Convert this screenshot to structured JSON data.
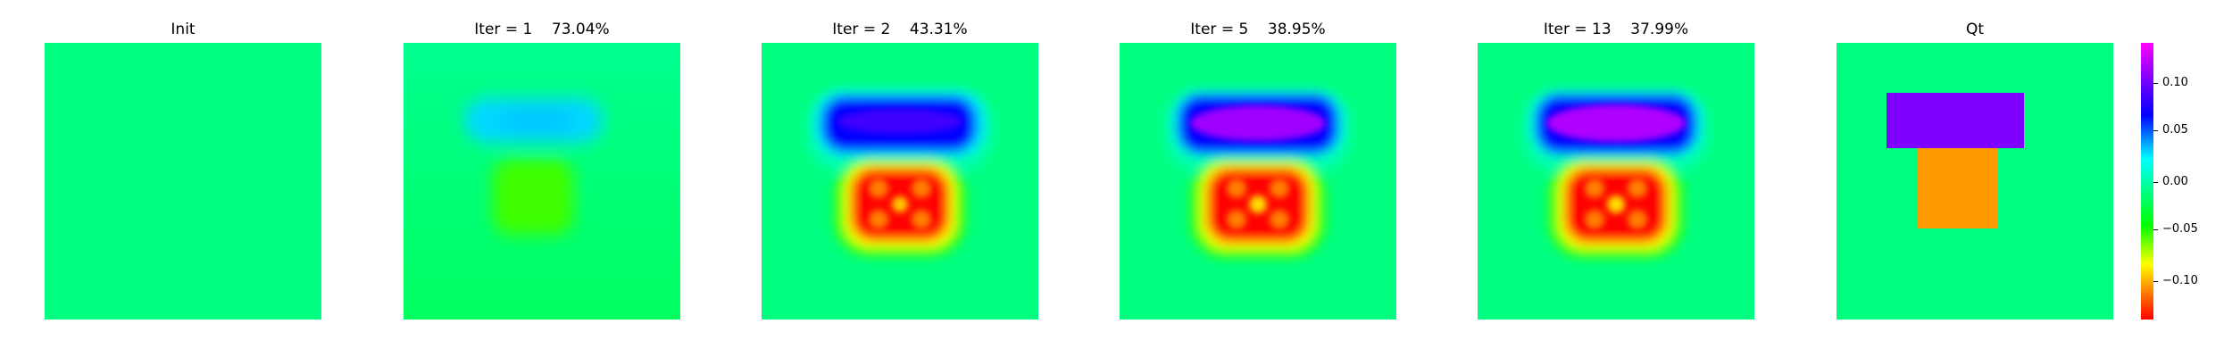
{
  "panels": [
    {
      "title": "Init"
    },
    {
      "title": "Iter = 1    73.04%"
    },
    {
      "title": "Iter = 2    43.31%"
    },
    {
      "title": "Iter = 5    38.95%"
    },
    {
      "title": "Iter = 13    37.99%"
    },
    {
      "title": "Qt"
    }
  ],
  "colorbar": {
    "ticks": [
      "0.10",
      "0.05",
      "0.00",
      "−0.05",
      "−0.10"
    ]
  },
  "colors": {
    "background_field": "#00ff80",
    "qt_top_block": "#8000ff",
    "qt_bottom_block": "#ff9900"
  }
}
